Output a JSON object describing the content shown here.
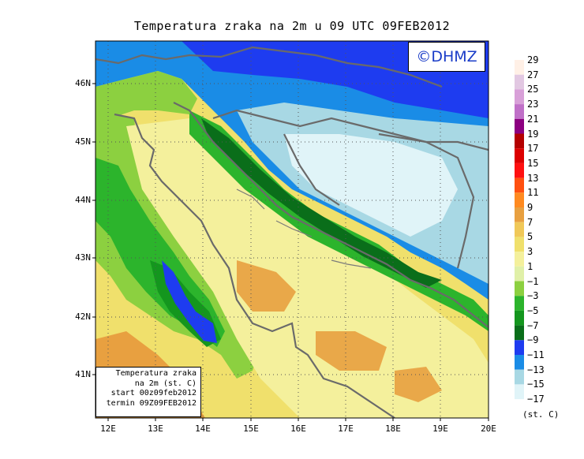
{
  "title": "Temperatura zraka na 2m u 09 UTC 09FEB2012",
  "logo": "©DHMZ",
  "lat_labels": [
    "46N",
    "45N",
    "44N",
    "43N",
    "42N",
    "41N"
  ],
  "lon_labels": [
    "12E",
    "13E",
    "14E",
    "15E",
    "16E",
    "17E",
    "18E",
    "19E",
    "20E"
  ],
  "legend": {
    "values": [
      "29",
      "27",
      "25",
      "23",
      "21",
      "19",
      "17",
      "15",
      "13",
      "11",
      "9",
      "7",
      "5",
      "3",
      "1",
      "−1",
      "−3",
      "−5",
      "−7",
      "−9",
      "−11",
      "−13",
      "−15",
      "−17"
    ],
    "colors": [
      "#fff0e6",
      "#e2c8e2",
      "#d8a0d8",
      "#c070c8",
      "#8c0080",
      "#b40000",
      "#dc0000",
      "#ff1010",
      "#ff5010",
      "#ff8a20",
      "#e8a040",
      "#f0c858",
      "#f0e06c",
      "#f4f09c",
      "#e0f0a8",
      "#8cd040",
      "#2cb42c",
      "#14961e",
      "#0a6e1a",
      "#1e3cf0",
      "#1a8ce6",
      "#a8d8e4",
      "#e0f4f8"
    ],
    "units": "(st. C)"
  },
  "info": {
    "line1": "Temperatura zraka",
    "line2": "na 2m (st. C)",
    "line3": "start 00z09feb2012",
    "line4": "termin 09Z09FEB2012"
  }
}
